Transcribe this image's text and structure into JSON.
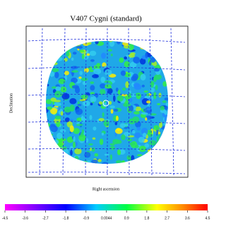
{
  "chart_data": {
    "type": "heatmap",
    "title": "V407 Cygni (standard)",
    "xlabel": "Right ascension",
    "ylabel": "Declination",
    "clim": [
      -4.5,
      4.5
    ],
    "cticks": [
      -4.5,
      -3.6,
      -2.7,
      -1.8,
      -0.9,
      0.0044,
      0.9,
      1.8,
      2.7,
      3.6,
      4.5
    ]
  }
}
